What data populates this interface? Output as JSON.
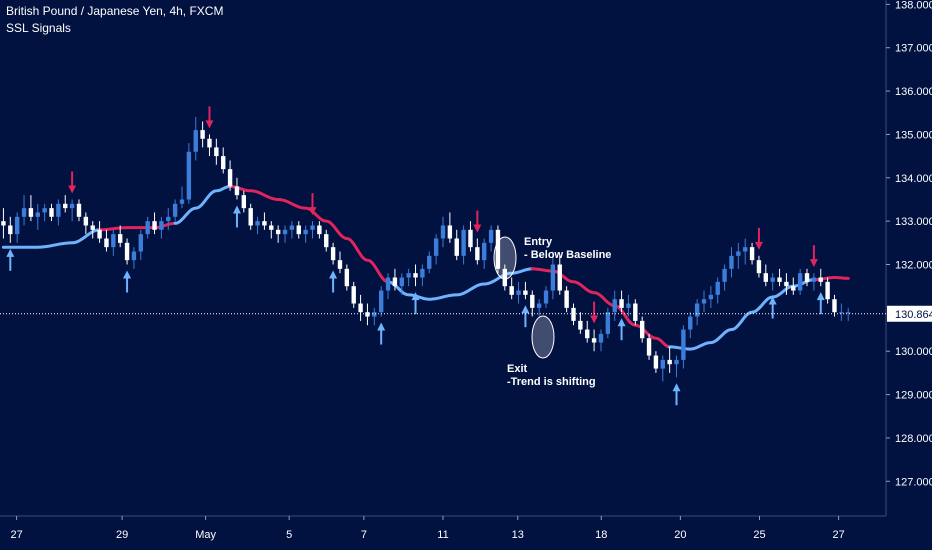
{
  "header": {
    "title": "British Pound / Japanese Yen, 4h, FXCM",
    "indicator": "SSL Signals"
  },
  "colors": {
    "background": "#011140",
    "bull_candle": "#3b7dd8",
    "bear_candle": "#ffffff",
    "ssl_up": "#6fb3ff",
    "ssl_down": "#e0245e",
    "buy_arrow": "#6fb3ff",
    "sell_arrow": "#e0245e",
    "axis_text": "#ffffff"
  },
  "chart_data": {
    "type": "candlestick",
    "symbol": "GBPJPY",
    "timeframe": "4h",
    "last_price": "130.864",
    "y_range": [
      126.2,
      138.1
    ],
    "y_ticks": [
      "138.000",
      "137.000",
      "136.000",
      "135.000",
      "134.000",
      "133.000",
      "132.000",
      "130.000",
      "129.000",
      "128.000",
      "127.000"
    ],
    "x_ticks": [
      "27",
      "29",
      "May",
      "5",
      "7",
      "11",
      "13",
      "18",
      "20",
      "25",
      "27"
    ],
    "candles": [
      [
        133.0,
        133.3,
        132.6,
        132.9
      ],
      [
        132.9,
        133.1,
        132.5,
        132.7
      ],
      [
        132.7,
        133.2,
        132.5,
        133.1
      ],
      [
        133.1,
        133.6,
        132.9,
        133.3
      ],
      [
        133.3,
        133.6,
        133.0,
        133.1
      ],
      [
        133.1,
        133.4,
        132.8,
        133.2
      ],
      [
        133.2,
        133.4,
        133.0,
        133.3
      ],
      [
        133.3,
        133.4,
        133.0,
        133.1
      ],
      [
        133.1,
        133.5,
        132.9,
        133.4
      ],
      [
        133.4,
        133.6,
        133.2,
        133.3
      ],
      [
        133.3,
        133.5,
        133.0,
        133.4
      ],
      [
        133.4,
        133.5,
        133.0,
        133.1
      ],
      [
        133.1,
        133.2,
        132.7,
        132.9
      ],
      [
        132.9,
        133.0,
        132.6,
        132.8
      ],
      [
        132.8,
        133.0,
        132.5,
        132.6
      ],
      [
        132.6,
        132.8,
        132.3,
        132.4
      ],
      [
        132.4,
        132.8,
        132.2,
        132.7
      ],
      [
        132.7,
        132.9,
        132.4,
        132.5
      ],
      [
        132.5,
        132.6,
        132.0,
        132.1
      ],
      [
        132.1,
        132.4,
        131.9,
        132.3
      ],
      [
        132.3,
        132.8,
        132.1,
        132.7
      ],
      [
        132.7,
        133.1,
        132.6,
        133.0
      ],
      [
        133.0,
        133.2,
        132.7,
        132.8
      ],
      [
        132.8,
        133.1,
        132.6,
        133.0
      ],
      [
        133.0,
        133.3,
        132.8,
        133.1
      ],
      [
        133.1,
        133.5,
        133.0,
        133.4
      ],
      [
        133.4,
        133.8,
        133.3,
        133.5
      ],
      [
        133.5,
        134.8,
        133.4,
        134.6
      ],
      [
        134.6,
        135.4,
        134.4,
        135.1
      ],
      [
        135.1,
        135.3,
        134.7,
        134.9
      ],
      [
        134.9,
        135.0,
        134.5,
        134.7
      ],
      [
        134.7,
        134.9,
        134.3,
        134.5
      ],
      [
        134.5,
        134.7,
        134.1,
        134.2
      ],
      [
        134.2,
        134.4,
        133.7,
        133.8
      ],
      [
        133.8,
        134.0,
        133.5,
        133.6
      ],
      [
        133.6,
        133.7,
        133.2,
        133.3
      ],
      [
        133.3,
        133.4,
        132.8,
        132.9
      ],
      [
        132.9,
        133.1,
        132.7,
        133.0
      ],
      [
        133.0,
        133.2,
        132.8,
        132.9
      ],
      [
        132.9,
        133.0,
        132.6,
        132.8
      ],
      [
        132.8,
        132.9,
        132.5,
        132.7
      ],
      [
        132.7,
        132.9,
        132.5,
        132.8
      ],
      [
        132.8,
        133.0,
        132.6,
        132.9
      ],
      [
        132.9,
        133.0,
        132.6,
        132.7
      ],
      [
        132.7,
        132.9,
        132.5,
        132.8
      ],
      [
        132.8,
        133.0,
        132.6,
        132.9
      ],
      [
        132.9,
        133.0,
        132.6,
        132.7
      ],
      [
        132.7,
        132.8,
        132.3,
        132.4
      ],
      [
        132.4,
        132.5,
        132.0,
        132.1
      ],
      [
        132.1,
        132.3,
        131.8,
        131.9
      ],
      [
        131.9,
        132.0,
        131.4,
        131.5
      ],
      [
        131.5,
        131.6,
        131.0,
        131.1
      ],
      [
        131.1,
        131.3,
        130.7,
        130.9
      ],
      [
        130.9,
        131.1,
        130.6,
        130.8
      ],
      [
        130.8,
        131.0,
        130.6,
        130.9
      ],
      [
        130.9,
        131.5,
        130.8,
        131.4
      ],
      [
        131.4,
        131.8,
        131.2,
        131.7
      ],
      [
        131.7,
        131.9,
        131.4,
        131.5
      ],
      [
        131.5,
        131.8,
        131.3,
        131.7
      ],
      [
        131.7,
        131.9,
        131.5,
        131.8
      ],
      [
        131.8,
        132.0,
        131.5,
        131.7
      ],
      [
        131.7,
        132.0,
        131.5,
        131.9
      ],
      [
        131.9,
        132.3,
        131.8,
        132.2
      ],
      [
        132.2,
        132.7,
        132.0,
        132.6
      ],
      [
        132.6,
        133.1,
        132.4,
        132.9
      ],
      [
        132.9,
        133.2,
        132.5,
        132.6
      ],
      [
        132.6,
        132.8,
        132.1,
        132.2
      ],
      [
        132.2,
        132.9,
        132.0,
        132.8
      ],
      [
        132.8,
        133.0,
        132.3,
        132.4
      ],
      [
        132.4,
        132.6,
        132.0,
        132.1
      ],
      [
        132.1,
        132.6,
        131.9,
        132.5
      ],
      [
        132.5,
        132.9,
        132.3,
        132.8
      ],
      [
        132.8,
        132.9,
        131.8,
        131.9
      ],
      [
        131.9,
        132.0,
        131.4,
        131.5
      ],
      [
        131.5,
        131.7,
        131.2,
        131.3
      ],
      [
        131.3,
        131.6,
        131.1,
        131.4
      ],
      [
        131.4,
        131.6,
        131.2,
        131.3
      ],
      [
        131.3,
        131.4,
        130.8,
        131.0
      ],
      [
        131.0,
        131.2,
        130.8,
        131.1
      ],
      [
        131.1,
        131.5,
        131.0,
        131.4
      ],
      [
        131.4,
        132.3,
        131.2,
        132.0
      ],
      [
        132.0,
        132.2,
        131.3,
        131.4
      ],
      [
        131.4,
        131.5,
        130.9,
        131.0
      ],
      [
        131.0,
        131.1,
        130.6,
        130.7
      ],
      [
        130.7,
        130.9,
        130.4,
        130.5
      ],
      [
        130.5,
        130.7,
        130.2,
        130.3
      ],
      [
        130.3,
        130.5,
        130.0,
        130.2
      ],
      [
        130.2,
        130.5,
        130.0,
        130.4
      ],
      [
        130.4,
        131.0,
        130.3,
        130.9
      ],
      [
        130.9,
        131.4,
        130.7,
        131.2
      ],
      [
        131.2,
        131.4,
        130.9,
        131.0
      ],
      [
        131.0,
        131.3,
        130.8,
        131.1
      ],
      [
        131.1,
        131.2,
        130.6,
        130.7
      ],
      [
        130.7,
        130.8,
        130.2,
        130.3
      ],
      [
        130.3,
        130.4,
        129.8,
        129.9
      ],
      [
        129.9,
        130.0,
        129.5,
        129.6
      ],
      [
        129.6,
        129.9,
        129.3,
        129.8
      ],
      [
        129.8,
        130.1,
        129.5,
        129.7
      ],
      [
        129.7,
        129.9,
        129.4,
        129.8
      ],
      [
        129.8,
        130.6,
        129.6,
        130.5
      ],
      [
        130.5,
        130.9,
        130.3,
        130.8
      ],
      [
        130.8,
        131.2,
        130.6,
        131.1
      ],
      [
        131.1,
        131.4,
        130.9,
        131.2
      ],
      [
        131.2,
        131.5,
        131.0,
        131.3
      ],
      [
        131.3,
        131.7,
        131.1,
        131.6
      ],
      [
        131.6,
        132.0,
        131.4,
        131.9
      ],
      [
        131.9,
        132.4,
        131.7,
        132.2
      ],
      [
        132.2,
        132.5,
        131.9,
        132.3
      ],
      [
        132.3,
        132.6,
        132.0,
        132.4
      ],
      [
        132.4,
        132.5,
        132.0,
        132.1
      ],
      [
        132.1,
        132.2,
        131.7,
        131.8
      ],
      [
        131.8,
        132.0,
        131.5,
        131.6
      ],
      [
        131.6,
        131.8,
        131.4,
        131.7
      ],
      [
        131.7,
        131.9,
        131.5,
        131.6
      ],
      [
        131.6,
        131.8,
        131.3,
        131.5
      ],
      [
        131.5,
        131.7,
        131.3,
        131.4
      ],
      [
        131.4,
        131.9,
        131.3,
        131.8
      ],
      [
        131.8,
        131.9,
        131.5,
        131.6
      ],
      [
        131.6,
        131.8,
        131.4,
        131.7
      ],
      [
        131.7,
        131.9,
        131.5,
        131.6
      ],
      [
        131.6,
        131.7,
        131.1,
        131.2
      ],
      [
        131.2,
        131.3,
        130.8,
        130.9
      ],
      [
        130.9,
        131.1,
        130.7,
        130.9
      ],
      [
        130.9,
        131.0,
        130.7,
        130.9
      ]
    ],
    "ssl_baseline": [
      [
        0,
        132.4
      ],
      [
        5,
        132.4
      ],
      [
        10,
        132.5
      ],
      [
        14,
        132.8
      ],
      [
        18,
        132.85
      ],
      [
        22,
        132.85
      ],
      [
        25,
        132.95
      ],
      [
        28,
        133.3
      ],
      [
        31,
        133.7
      ],
      [
        33,
        133.8
      ],
      [
        36,
        133.7
      ],
      [
        40,
        133.5
      ],
      [
        44,
        133.3
      ],
      [
        47,
        133.0
      ],
      [
        50,
        132.6
      ],
      [
        53,
        132.1
      ],
      [
        56,
        131.6
      ],
      [
        59,
        131.3
      ],
      [
        62,
        131.2
      ],
      [
        66,
        131.3
      ],
      [
        70,
        131.55
      ],
      [
        74,
        131.8
      ],
      [
        77,
        131.9
      ],
      [
        80,
        131.85
      ],
      [
        83,
        131.6
      ],
      [
        86,
        131.35
      ],
      [
        89,
        131.05
      ],
      [
        92,
        130.6
      ],
      [
        95,
        130.3
      ],
      [
        97,
        130.1
      ],
      [
        100,
        130.05
      ],
      [
        103,
        130.2
      ],
      [
        106,
        130.5
      ],
      [
        109,
        130.9
      ],
      [
        112,
        131.25
      ],
      [
        115,
        131.5
      ],
      [
        118,
        131.65
      ],
      [
        121,
        131.7
      ],
      [
        123,
        131.68
      ]
    ],
    "ssl_color_segments": [
      {
        "from": 0,
        "to": 14,
        "color": "up"
      },
      {
        "from": 14,
        "to": 25,
        "color": "down"
      },
      {
        "from": 25,
        "to": 33,
        "color": "up"
      },
      {
        "from": 33,
        "to": 56,
        "color": "down"
      },
      {
        "from": 56,
        "to": 77,
        "color": "up"
      },
      {
        "from": 77,
        "to": 97,
        "color": "down"
      },
      {
        "from": 97,
        "to": 118,
        "color": "up"
      },
      {
        "from": 118,
        "to": 123,
        "color": "down"
      }
    ],
    "buy_arrows": [
      1,
      18,
      34,
      48,
      55,
      60,
      76,
      90,
      98,
      112,
      119
    ],
    "sell_arrows": [
      10,
      30,
      45,
      69,
      86,
      110,
      118
    ],
    "annotations": {
      "entry_title": "Entry",
      "entry_text": "- Below Baseline",
      "exit_title": "Exit",
      "exit_text": "-Trend is shifting"
    }
  }
}
